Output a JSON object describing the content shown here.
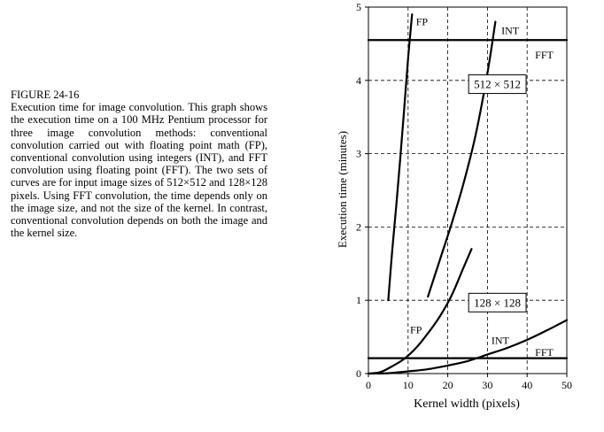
{
  "caption": {
    "label": "FIGURE 24-16",
    "text": "Execution time for image convolution. This graph shows the execution time on a 100 MHz Pentium processor for three image convolution methods: conventional convolution carried out with floating point math (FP), conventional convolution using integers (INT), and FFT convolution using floating point (FFT). The two sets of curves are for input image sizes of 512×512 and 128×128 pixels. Using FFT convolution, the time depends only on the image size, and not the size of the kernel. In contrast, conventional convolution depends on both the image and the kernel size."
  },
  "chart_data": {
    "type": "line",
    "xlabel": "Kernel width (pixels)",
    "ylabel": "Execution time (minutes)",
    "xlim": [
      0,
      50
    ],
    "ylim": [
      0,
      5
    ],
    "xticks": [
      0,
      10,
      20,
      30,
      40,
      50
    ],
    "yticks": [
      0,
      1,
      2,
      3,
      4,
      5
    ],
    "grid": "dashed",
    "series": [
      {
        "name": "FP",
        "group": "512 × 512",
        "x": [
          5,
          6,
          7,
          8,
          9,
          10,
          11
        ],
        "y": [
          1.0,
          1.68,
          2.28,
          2.92,
          3.6,
          4.3,
          4.9
        ]
      },
      {
        "name": "INT",
        "group": "512 × 512",
        "x": [
          15,
          18,
          21,
          24,
          27,
          30,
          32
        ],
        "y": [
          1.05,
          1.55,
          2.05,
          2.6,
          3.25,
          4.1,
          4.8
        ]
      },
      {
        "name": "FFT",
        "group": "512 × 512",
        "x": [
          0,
          50
        ],
        "y": [
          4.55,
          4.55
        ]
      },
      {
        "name": "FP",
        "group": "128 × 128",
        "x": [
          0,
          3,
          6,
          9,
          12,
          15,
          18,
          21,
          24,
          26
        ],
        "y": [
          0.0,
          0.02,
          0.1,
          0.2,
          0.35,
          0.55,
          0.78,
          1.07,
          1.45,
          1.7
        ]
      },
      {
        "name": "INT",
        "group": "128 × 128",
        "x": [
          0,
          5,
          10,
          15,
          20,
          25,
          30,
          35,
          40,
          45,
          50
        ],
        "y": [
          0.0,
          0.005,
          0.03,
          0.06,
          0.11,
          0.17,
          0.26,
          0.35,
          0.46,
          0.59,
          0.73
        ]
      },
      {
        "name": "FFT",
        "group": "128 × 128",
        "x": [
          0,
          50
        ],
        "y": [
          0.21,
          0.21
        ]
      }
    ],
    "curve_labels": [
      {
        "text": "FP",
        "x": 12,
        "y": 4.8
      },
      {
        "text": "INT",
        "x": 33.5,
        "y": 4.68
      },
      {
        "text": "FFT",
        "x": 42,
        "y": 4.35
      },
      {
        "text": "FP",
        "x": 10.5,
        "y": 0.6
      },
      {
        "text": "INT",
        "x": 31,
        "y": 0.45
      },
      {
        "text": "FFT",
        "x": 42,
        "y": 0.29
      }
    ],
    "group_labels": [
      {
        "text": "512 × 512",
        "x": 32.5,
        "y": 3.93
      },
      {
        "text": "128 × 128",
        "x": 32.5,
        "y": 0.95
      }
    ]
  }
}
